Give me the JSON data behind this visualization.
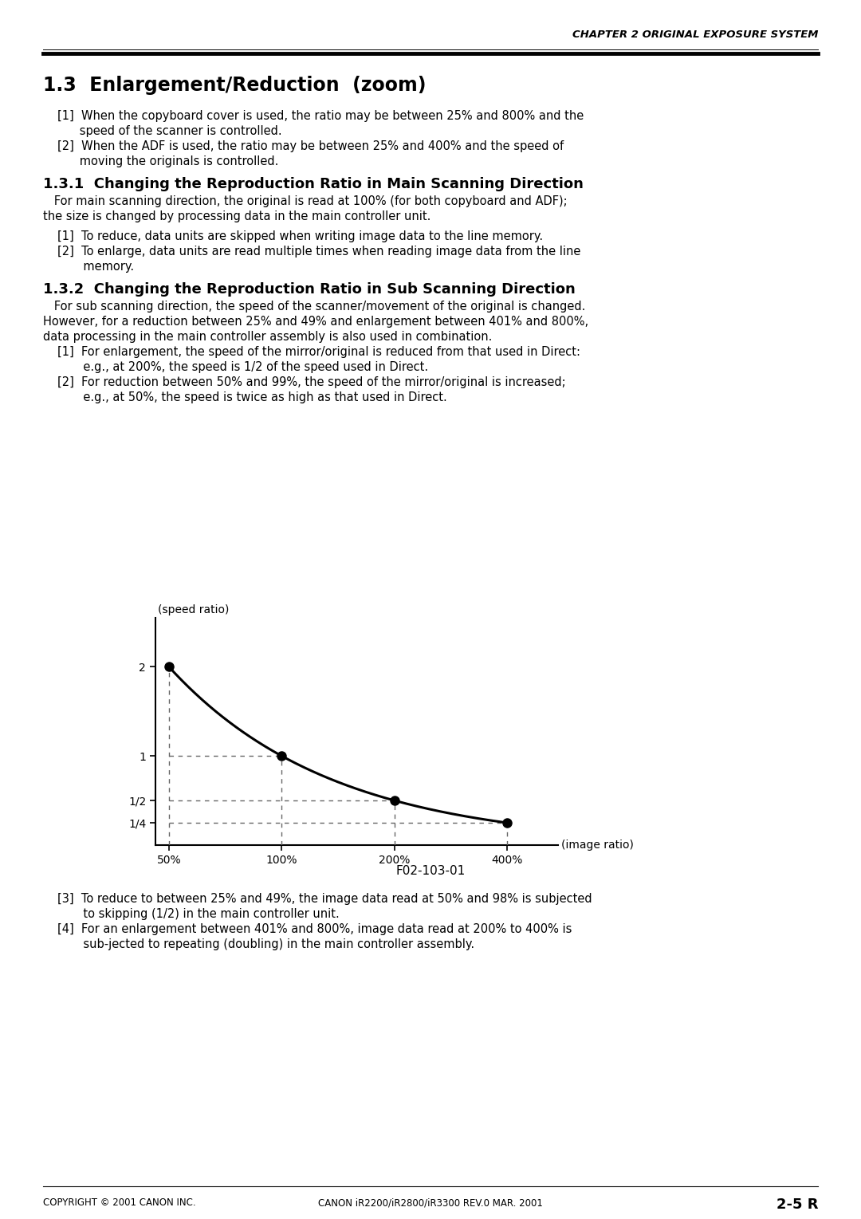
{
  "page_title": "CHAPTER 2 ORIGINAL EXPOSURE SYSTEM",
  "section_title": "1.3  Enlargement/Reduction  (zoom)",
  "section_1_3_lines": [
    "[1]  When the copyboard cover is used, the ratio may be between 25% and 800% and the",
    "      speed of the scanner is controlled.",
    "[2]  When the ADF is used, the ratio may be between 25% and 400% and the speed of",
    "      moving the originals is controlled."
  ],
  "section_1_3_1_title": "1.3.1  Changing the Reproduction Ratio in Main Scanning Direction",
  "section_1_3_1_body": [
    "   For main scanning direction, the original is read at 100% (for both copyboard and ADF);",
    "the size is changed by processing data in the main controller unit."
  ],
  "section_1_3_1_items": [
    "[1]  To reduce, data units are skipped when writing image data to the line memory.",
    "[2]  To enlarge, data units are read multiple times when reading image data from the line",
    "       memory."
  ],
  "section_1_3_2_title": "1.3.2  Changing the Reproduction Ratio in Sub Scanning Direction",
  "section_1_3_2_body": [
    "   For sub scanning direction, the speed of the scanner/movement of the original is changed.",
    "However, for a reduction between 25% and 49% and enlargement between 401% and 800%,",
    "data processing in the main controller assembly is also used in combination."
  ],
  "section_1_3_2_items": [
    "[1]  For enlargement, the speed of the mirror/original is reduced from that used in Direct:",
    "       e.g., at 200%, the speed is 1/2 of the speed used in Direct.",
    "[2]  For reduction between 50% and 99%, the speed of the mirror/original is increased;",
    "       e.g., at 50%, the speed is twice as high as that used in Direct."
  ],
  "graph_xlabel": "(image ratio)",
  "graph_ylabel": "(speed ratio)",
  "graph_xticks": [
    "50%",
    "100%",
    "200%",
    "400%"
  ],
  "graph_yticks": [
    "1/4",
    "1/2",
    "1",
    "2"
  ],
  "graph_ytick_vals": [
    0.25,
    0.5,
    1.0,
    2.0
  ],
  "graph_points_x": [
    0,
    1,
    2,
    3
  ],
  "graph_points_y": [
    2.0,
    1.0,
    0.5,
    0.25
  ],
  "graph_caption": "F02-103-01",
  "section_3_4_lines": [
    "[3]  To reduce to between 25% and 49%, the image data read at 50% and 98% is subjected",
    "       to skipping (1/2) in the main controller unit.",
    "[4]  For an enlargement between 401% and 800%, image data read at 200% to 400% is",
    "       sub-jected to repeating (doubling) in the main controller assembly."
  ],
  "footer_left": "COPYRIGHT © 2001 CANON INC.",
  "footer_center": "CANON iR2200/iR2800/iR3300 REV.0 MAR. 2001",
  "footer_right": "2-5 R",
  "bg_color": "#ffffff",
  "text_color": "#000000"
}
